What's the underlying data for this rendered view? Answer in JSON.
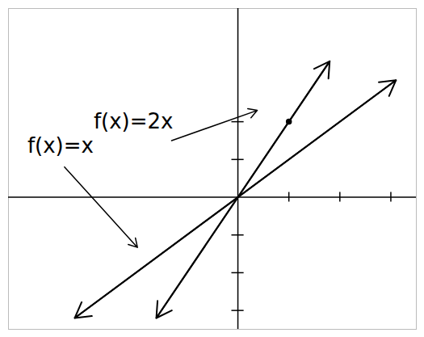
{
  "chart_data": {
    "type": "line",
    "xlim": [
      -4.5,
      3.5
    ],
    "ylim": [
      -3.5,
      5
    ],
    "xticks": [
      1,
      2,
      3
    ],
    "yticks": [
      -3,
      -2,
      -1,
      1,
      2
    ],
    "tick_labels": false,
    "grid": false,
    "series": [
      {
        "color": "#000000",
        "marker": "arrow",
        "line_style": "solid",
        "x": [
          -3.2,
          3.1
        ],
        "values": [
          -3.2,
          3.1
        ]
      },
      {
        "color": "#000000",
        "marker": "arrow",
        "line_style": "solid",
        "x": [
          -1.6,
          1.8
        ],
        "values": [
          -3.2,
          3.6
        ]
      }
    ],
    "points": [
      {
        "x": 1,
        "y": 2
      }
    ],
    "annotations": [
      {
        "text": "f(x)=2x",
        "x": -2.05,
        "y": 2.0,
        "arrow_x": -1.3,
        "arrow_y": 1.5,
        "target_x": 0.38,
        "target_y": 2.3
      },
      {
        "text": "f(x)=x",
        "x": -3.48,
        "y": 1.35,
        "arrow_x": -3.4,
        "arrow_y": 0.8,
        "target_x": -1.97,
        "target_y": -1.33
      }
    ]
  }
}
